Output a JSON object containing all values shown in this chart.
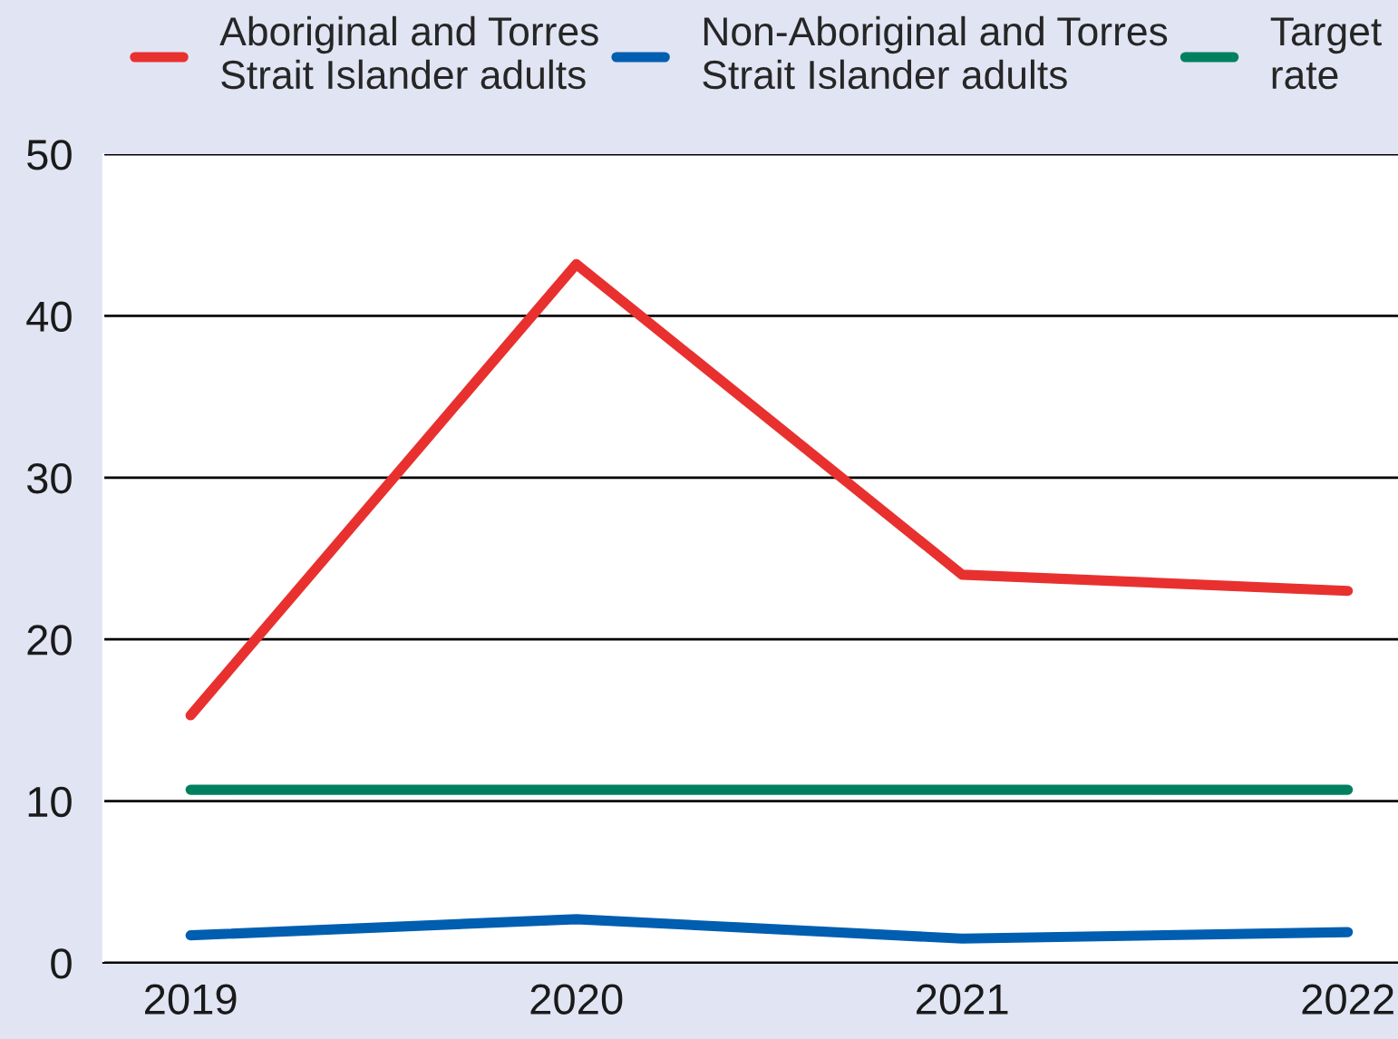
{
  "chart_data": {
    "type": "line",
    "categories": [
      "2019",
      "2020",
      "2021",
      "2022"
    ],
    "series": [
      {
        "name": "Aboriginal and Torres Strait Islander adults",
        "color": "#e8312f",
        "values": [
          15.3,
          43.2,
          24.0,
          23.0
        ]
      },
      {
        "name": "Non-Aboriginal and Torres Strait Islander adults",
        "color": "#005eb0",
        "values": [
          1.7,
          2.7,
          1.5,
          1.9
        ]
      },
      {
        "name": "Target rate",
        "color": "#00805f",
        "values": [
          10.7,
          10.7,
          10.7,
          10.7
        ]
      }
    ],
    "ylim": [
      0,
      50
    ],
    "yticks": [
      0,
      10,
      20,
      30,
      40,
      50
    ],
    "grid": "y",
    "legend": "top",
    "marker": "none",
    "line_style": "solid"
  }
}
